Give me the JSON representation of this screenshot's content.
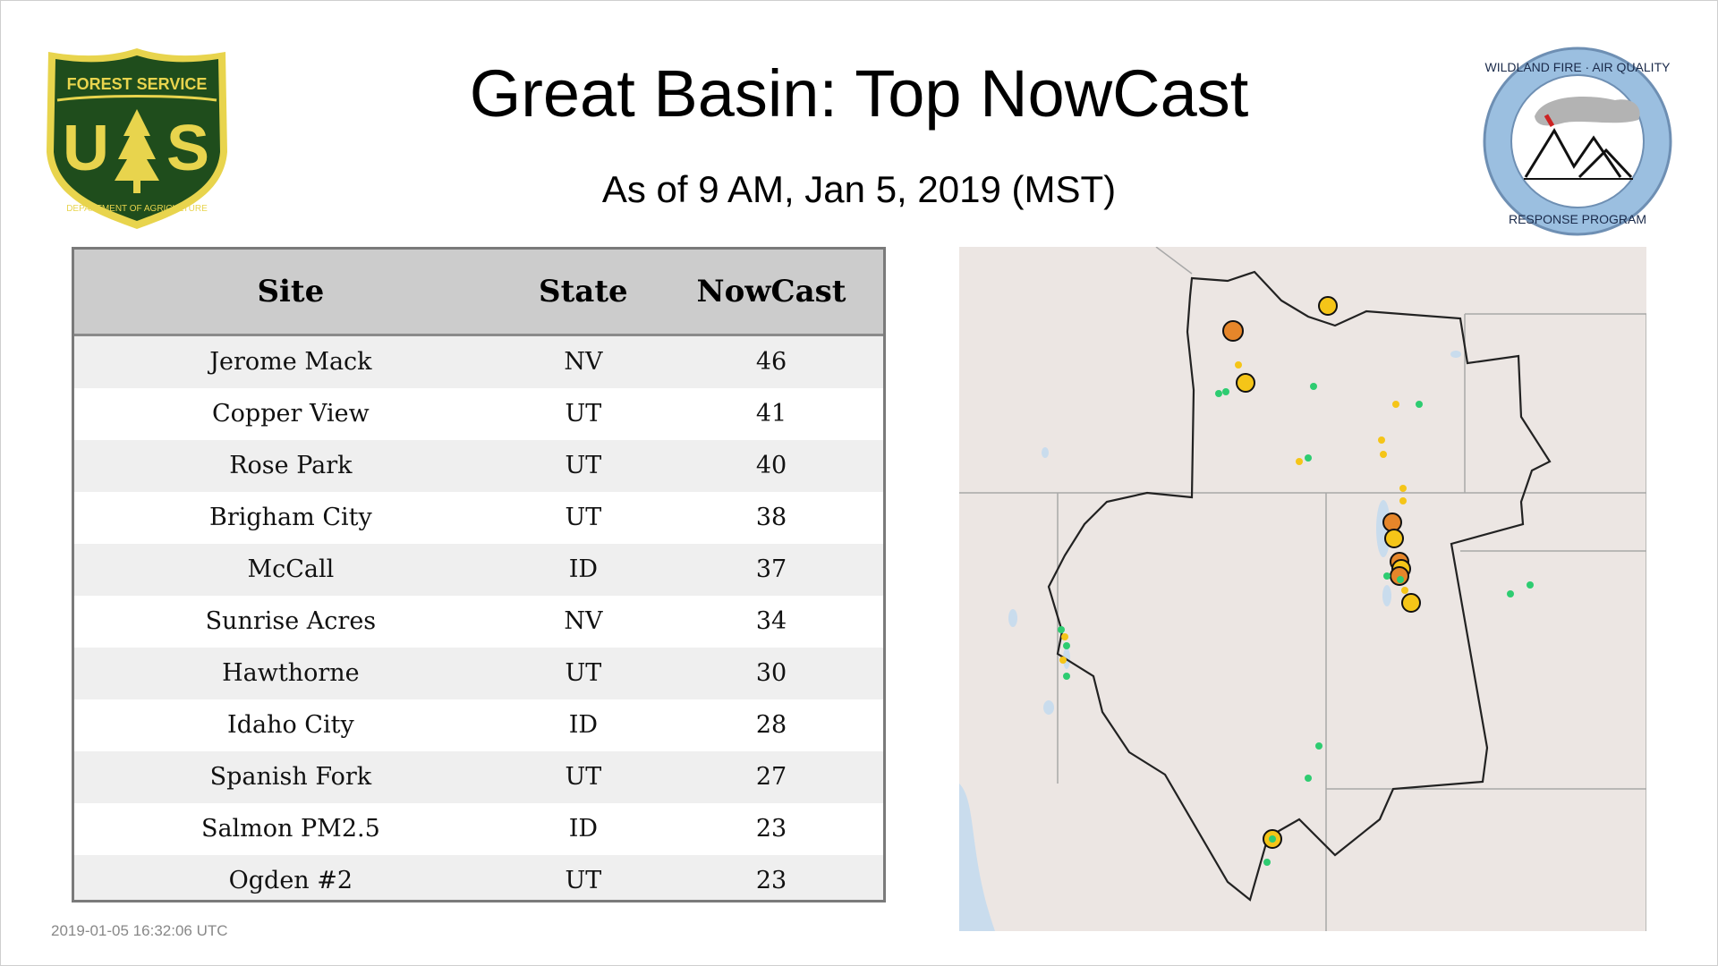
{
  "page": {
    "title": "Great Basin: Top NowCast",
    "subtitle": "As of  9 AM, Jan  5, 2019 (MST)",
    "timestamp": "2019-01-05 16:32:06 UTC"
  },
  "logos": {
    "left": {
      "icon": "forest-service-shield-icon",
      "top_text": "FOREST SERVICE",
      "letters": "U  S",
      "bottom_text": "DEPARTMENT OF AGRICULTURE",
      "color": "#1f4d1c",
      "accent": "#e8d44d"
    },
    "right": {
      "icon": "wildland-fire-air-quality-icon",
      "top_text": "WILDLAND FIRE · AIR QUALITY",
      "bottom_text": "RESPONSE PROGRAM",
      "ring_color": "#9bbfe0"
    }
  },
  "table": {
    "headers": [
      "Site",
      "State",
      "NowCast"
    ],
    "rows": [
      [
        "Jerome Mack",
        "NV",
        "46"
      ],
      [
        "Copper View",
        "UT",
        "41"
      ],
      [
        "Rose Park",
        "UT",
        "40"
      ],
      [
        "Brigham City",
        "UT",
        "38"
      ],
      [
        "McCall",
        "ID",
        "37"
      ],
      [
        "Sunrise Acres",
        "NV",
        "34"
      ],
      [
        "Hawthorne",
        "UT",
        "30"
      ],
      [
        "Idaho City",
        "ID",
        "28"
      ],
      [
        "Spanish Fork",
        "UT",
        "27"
      ],
      [
        "Salmon PM2.5",
        "ID",
        "23"
      ],
      [
        "Ogden #2",
        "UT",
        "23"
      ]
    ]
  },
  "map": {
    "colors": {
      "land": "#ece6e3",
      "water": "#c9dced",
      "boundary": "#222222",
      "state_lines": "#a8a8a8",
      "green": "#2ecc71",
      "yellow": "#f5c518",
      "orange": "#e6862a"
    }
  }
}
